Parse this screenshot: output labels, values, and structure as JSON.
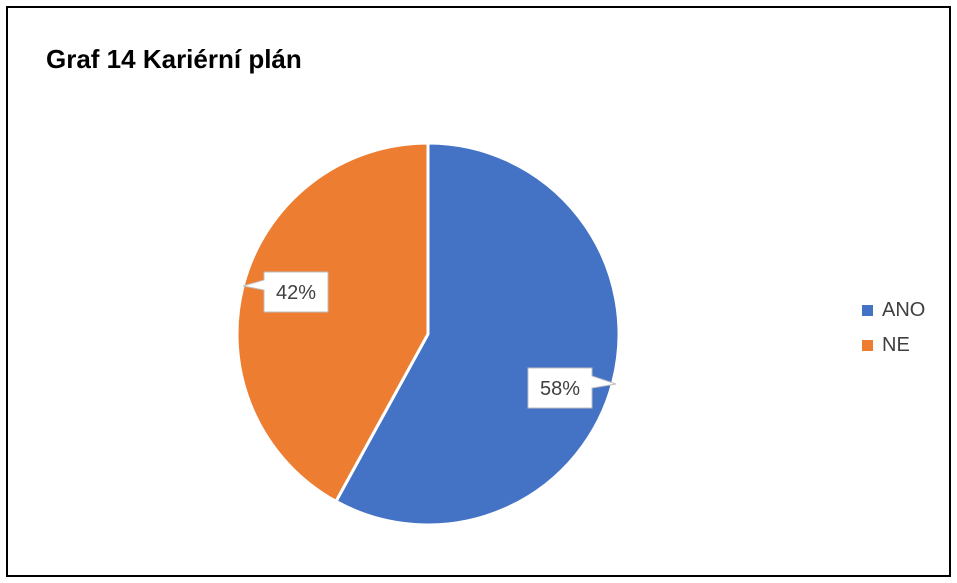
{
  "chart_data": {
    "type": "pie",
    "title": "Graf 14 Kariérní plán",
    "categories": [
      "ANO",
      "NE"
    ],
    "values": [
      58,
      42
    ],
    "data_labels": [
      "58%",
      "42%"
    ],
    "colors": [
      "#4472C4",
      "#ED7D31"
    ],
    "legend_position": "right"
  }
}
